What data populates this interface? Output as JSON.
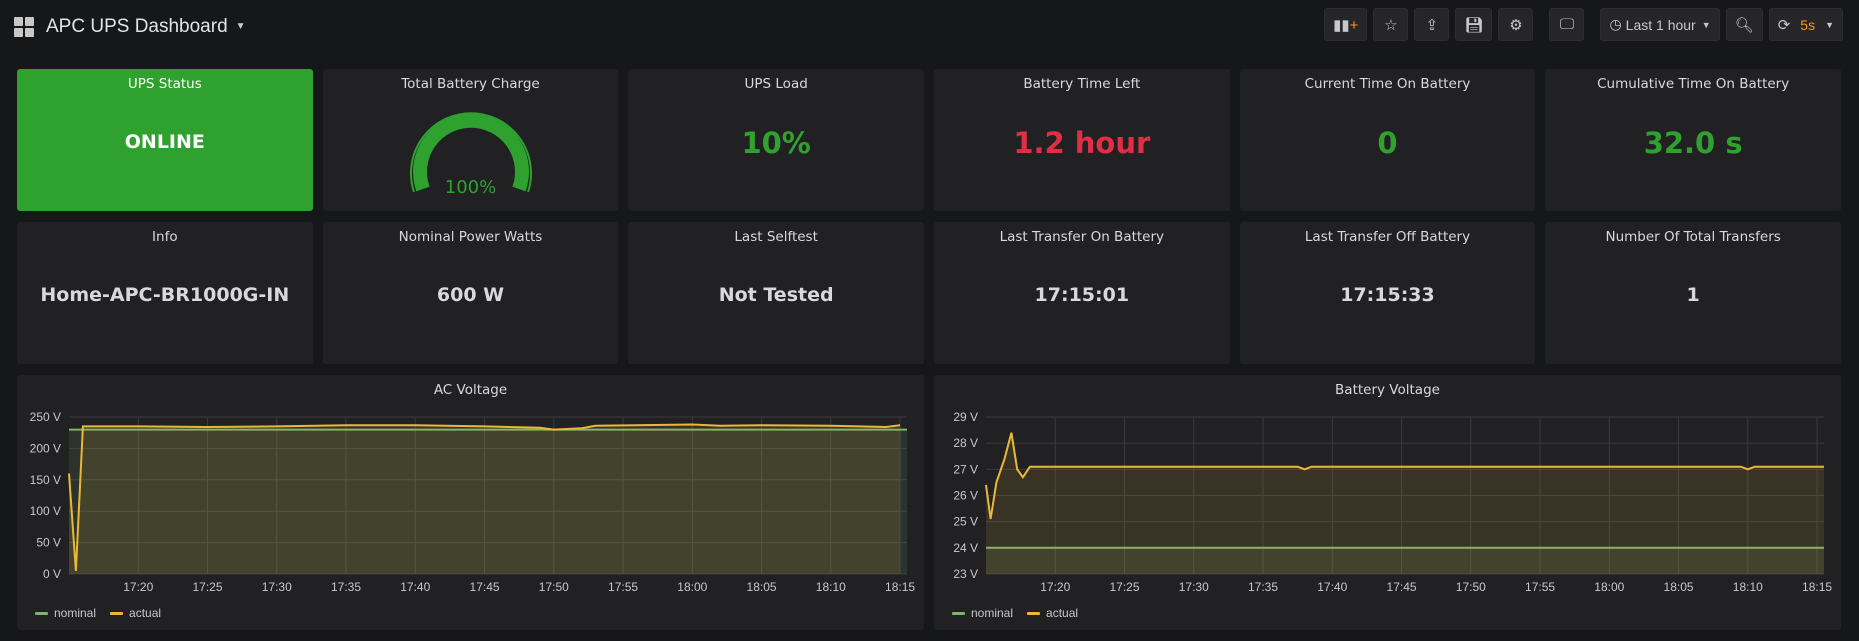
{
  "header": {
    "title": "APC UPS Dashboard",
    "time_range": "Last 1 hour",
    "refresh": "5s"
  },
  "panels": [
    {
      "title": "UPS Status",
      "value": "ONLINE"
    },
    {
      "title": "Total Battery Charge",
      "value": "100%",
      "gauge_percent": 100
    },
    {
      "title": "UPS Load",
      "value": "10%"
    },
    {
      "title": "Battery Time Left",
      "value": "1.2 hour"
    },
    {
      "title": "Current Time On Battery",
      "value": "0"
    },
    {
      "title": "Cumulative Time On Battery",
      "value": "32.0 s"
    },
    {
      "title": "Info",
      "value": "Home-APC-BR1000G-IN"
    },
    {
      "title": "Nominal Power Watts",
      "value": "600 W"
    },
    {
      "title": "Last Selftest",
      "value": "Not Tested"
    },
    {
      "title": "Last Transfer On Battery",
      "value": "17:15:01"
    },
    {
      "title": "Last Transfer Off Battery",
      "value": "17:15:33"
    },
    {
      "title": "Number Of Total Transfers",
      "value": "1"
    }
  ],
  "colors": {
    "green": "#2fa12f",
    "red": "#e02f44",
    "nominal": "#7eb26d",
    "actual": "#eab839"
  },
  "chart_data": [
    {
      "type": "line",
      "title": "AC Voltage",
      "xlabel": "",
      "ylabel": "",
      "unit": "V",
      "xrange": [
        "17:15:00",
        "18:15:30"
      ],
      "ylim": [
        0,
        250
      ],
      "yticks": [
        0,
        50,
        100,
        150,
        200,
        250
      ],
      "xticks": [
        "17:20",
        "17:25",
        "17:30",
        "17:35",
        "17:40",
        "17:45",
        "17:50",
        "17:55",
        "18:00",
        "18:05",
        "18:10",
        "18:15"
      ],
      "legend": "bottom-left",
      "series": [
        {
          "name": "nominal",
          "color": "#7eb26d",
          "points": [
            [
              "17:15:00",
              230
            ],
            [
              "18:15:30",
              230
            ]
          ]
        },
        {
          "name": "actual",
          "color": "#eab839",
          "points": [
            [
              "17:15:00",
              160
            ],
            [
              "17:15:30",
              5
            ],
            [
              "17:16:00",
              235
            ],
            [
              "17:20:00",
              235
            ],
            [
              "17:25:00",
              234
            ],
            [
              "17:30:00",
              235
            ],
            [
              "17:35:00",
              237
            ],
            [
              "17:40:00",
              237
            ],
            [
              "17:45:00",
              235
            ],
            [
              "17:49:00",
              233
            ],
            [
              "17:50:00",
              230
            ],
            [
              "17:52:00",
              232
            ],
            [
              "17:53:00",
              236
            ],
            [
              "18:00:00",
              238
            ],
            [
              "18:02:00",
              236
            ],
            [
              "18:05:00",
              237
            ],
            [
              "18:10:00",
              236
            ],
            [
              "18:14:00",
              234
            ],
            [
              "18:15:00",
              237
            ]
          ]
        }
      ]
    },
    {
      "type": "line",
      "title": "Battery Voltage",
      "xlabel": "",
      "ylabel": "",
      "unit": "V",
      "xrange": [
        "17:15:00",
        "18:15:30"
      ],
      "ylim": [
        23,
        29
      ],
      "yticks": [
        23,
        24,
        25,
        26,
        27,
        28,
        29
      ],
      "xticks": [
        "17:20",
        "17:25",
        "17:30",
        "17:35",
        "17:40",
        "17:45",
        "17:50",
        "17:55",
        "18:00",
        "18:05",
        "18:10",
        "18:15"
      ],
      "legend": "bottom-left",
      "series": [
        {
          "name": "nominal",
          "color": "#7eb26d",
          "points": [
            [
              "17:15:00",
              24
            ],
            [
              "18:15:30",
              24
            ]
          ]
        },
        {
          "name": "actual",
          "color": "#eab839",
          "points": [
            [
              "17:15:00",
              26.4
            ],
            [
              "17:15:20",
              25.1
            ],
            [
              "17:15:45",
              26.5
            ],
            [
              "17:16:20",
              27.4
            ],
            [
              "17:16:50",
              28.4
            ],
            [
              "17:17:15",
              27.0
            ],
            [
              "17:17:40",
              26.7
            ],
            [
              "17:18:10",
              27.1
            ],
            [
              "17:37:30",
              27.1
            ],
            [
              "17:38:00",
              27.0
            ],
            [
              "17:38:30",
              27.1
            ],
            [
              "18:09:30",
              27.1
            ],
            [
              "18:10:00",
              27.0
            ],
            [
              "18:10:30",
              27.1
            ],
            [
              "18:15:30",
              27.1
            ]
          ]
        }
      ]
    }
  ]
}
